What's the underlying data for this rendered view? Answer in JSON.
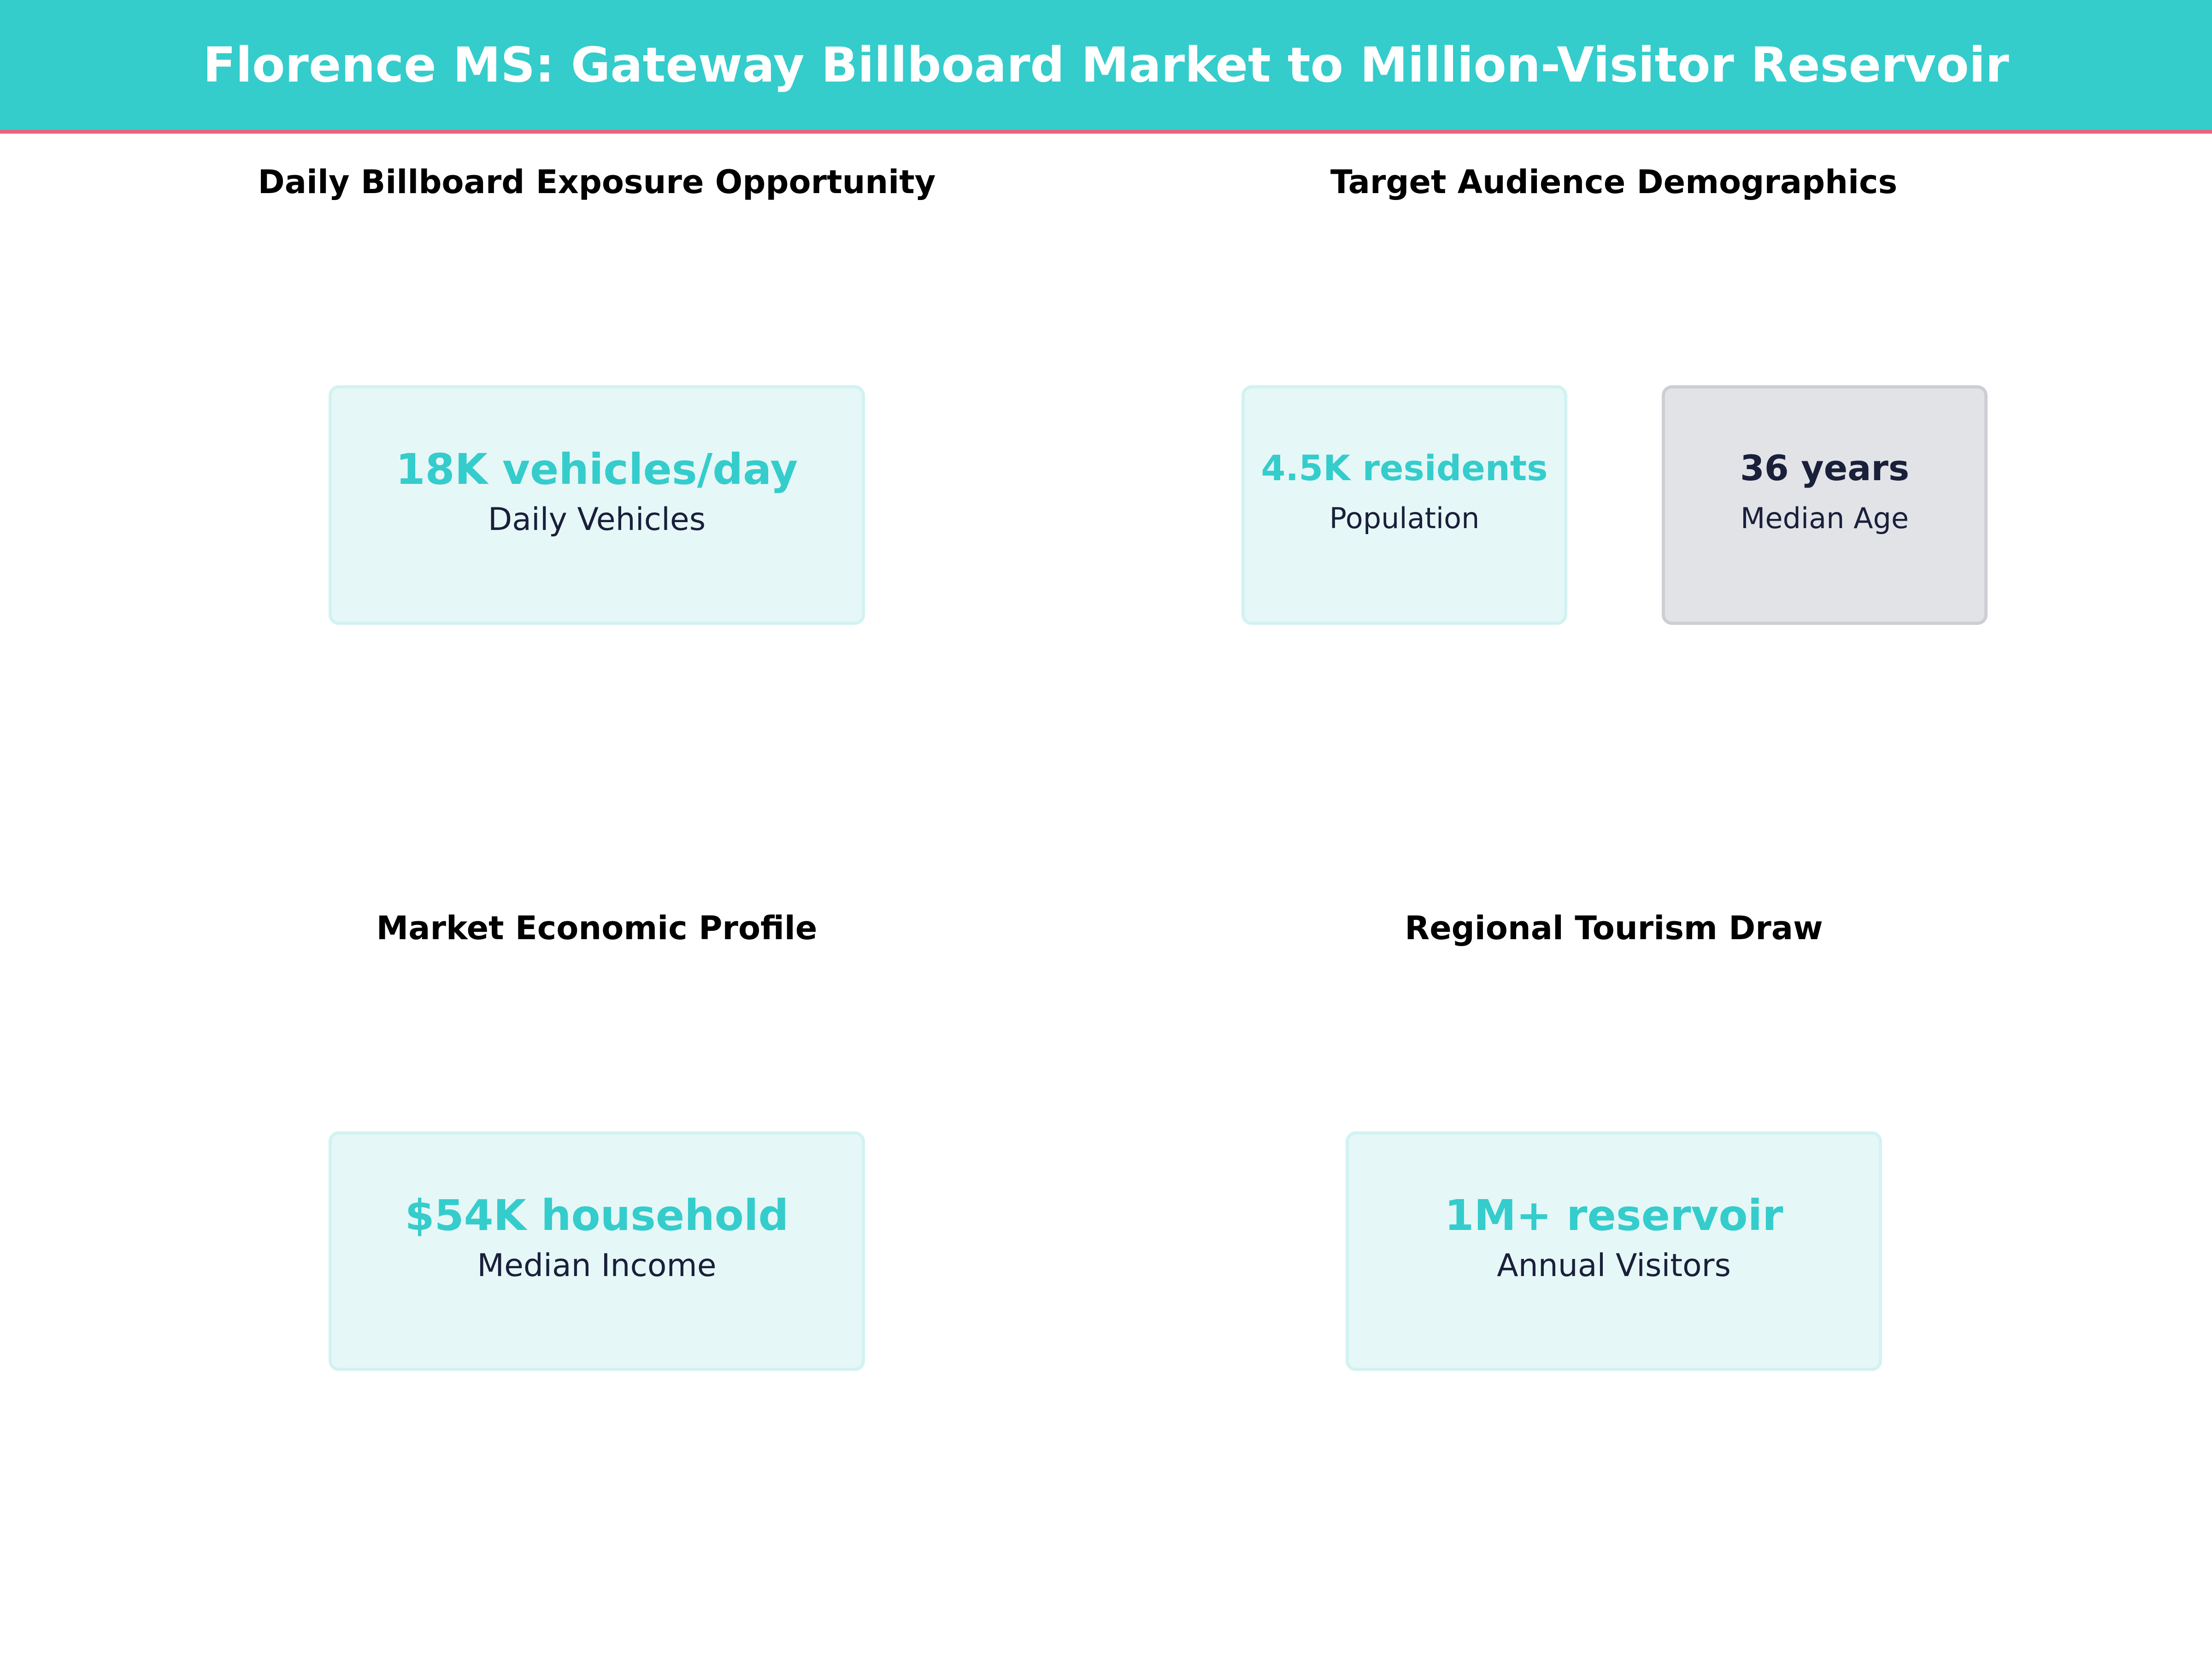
{
  "header": {
    "title": "Florence MS: Gateway Billboard Market to Million-Visitor Reservoir"
  },
  "colors": {
    "accent": "#35cccc",
    "header_rule": "#ea6479",
    "dark_text": "#1a1f3a",
    "card_bg": "#e6f7f7",
    "neutral_card_bg": "#e1e3e7"
  },
  "sections": [
    {
      "title": "Daily Billboard Exposure Opportunity",
      "cards": [
        {
          "value": "18K vehicles/day",
          "label": "Daily Vehicles"
        }
      ]
    },
    {
      "title": "Target Audience Demographics",
      "cards": [
        {
          "value": "4.5K residents",
          "label": "Population"
        },
        {
          "value": "36 years",
          "label": "Median Age"
        }
      ]
    },
    {
      "title": "Market Economic Profile",
      "cards": [
        {
          "value": "$54K household",
          "label": "Median Income"
        }
      ]
    },
    {
      "title": "Regional Tourism Draw",
      "cards": [
        {
          "value": "1M+ reservoir",
          "label": "Annual Visitors"
        }
      ]
    }
  ]
}
